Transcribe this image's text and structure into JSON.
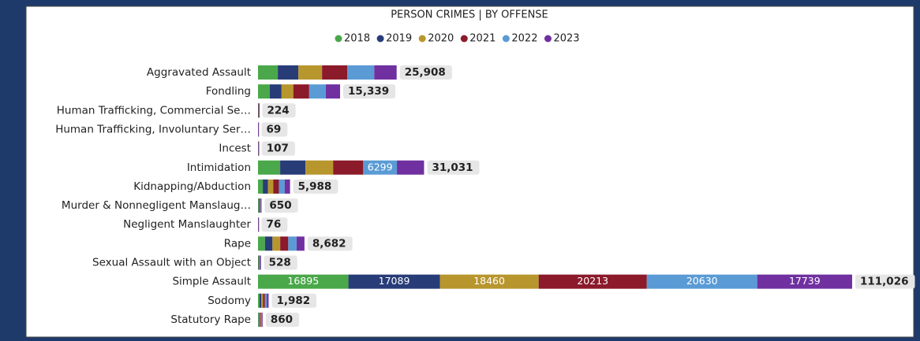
{
  "chart_data": {
    "type": "stacked_hbar",
    "title": "PERSON CRIMES | BY OFFENSE",
    "categories": [
      "Aggravated Assault",
      "Fondling",
      "Human Trafficking, Commercial Se…",
      "Human Trafficking, Involuntary Ser…",
      "Incest",
      "Intimidation",
      "Kidnapping/Abduction",
      "Murder & Nonnegligent Manslaug…",
      "Negligent Manslaughter",
      "Rape",
      "Sexual Assault with an Object",
      "Simple Assault",
      "Sodomy",
      "Statutory Rape"
    ],
    "series": [
      {
        "name": "2018",
        "color": "#4aa84a",
        "values": [
          3700,
          2200,
          20,
          5,
          15,
          4140,
          900,
          100,
          10,
          1300,
          80,
          16895,
          300,
          130
        ]
      },
      {
        "name": "2019",
        "color": "#283c78",
        "values": [
          3840,
          2200,
          30,
          10,
          18,
          4730,
          950,
          110,
          12,
          1400,
          85,
          17089,
          320,
          140
        ]
      },
      {
        "name": "2020",
        "color": "#b8962e",
        "values": [
          4430,
          2200,
          40,
          12,
          20,
          5170,
          1000,
          115,
          14,
          1450,
          90,
          18460,
          330,
          145
        ]
      },
      {
        "name": "2021",
        "color": "#8b1a2a",
        "values": [
          4730,
          2960,
          45,
          14,
          18,
          5620,
          1050,
          110,
          13,
          1500,
          90,
          20213,
          340,
          150
        ]
      },
      {
        "name": "2022",
        "color": "#5a9bd5",
        "values": [
          5020,
          3100,
          50,
          15,
          19,
          6299,
          1080,
          110,
          14,
          1550,
          95,
          20630,
          350,
          150
        ]
      },
      {
        "name": "2023",
        "color": "#7030a0",
        "values": [
          4188,
          2679,
          39,
          13,
          17,
          5072,
          1008,
          105,
          13,
          1482,
          88,
          17739,
          342,
          145
        ]
      }
    ],
    "totals": [
      25908,
      15339,
      224,
      69,
      107,
      31031,
      5988,
      650,
      76,
      8682,
      528,
      111026,
      1982,
      860
    ],
    "total_labels": [
      "25,908",
      "15,339",
      "224",
      "69",
      "107",
      "31,031",
      "5,988",
      "650",
      "76",
      "8,682",
      "528",
      "111,026",
      "1,982",
      "860"
    ],
    "xlim": [
      0,
      111026
    ]
  }
}
